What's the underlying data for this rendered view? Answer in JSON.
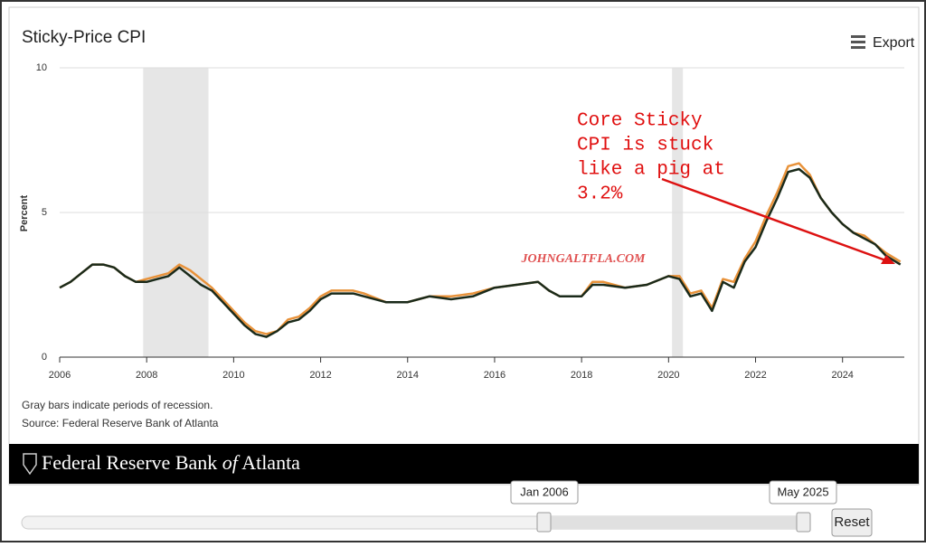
{
  "chart_data": {
    "type": "line",
    "title": "Sticky-Price CPI",
    "export": "Export",
    "ylabel": "Percent",
    "x": [
      2006.0,
      2006.25,
      2006.5,
      2006.75,
      2007.0,
      2007.25,
      2007.5,
      2007.75,
      2008.0,
      2008.25,
      2008.5,
      2008.75,
      2009.0,
      2009.25,
      2009.5,
      2009.75,
      2010.0,
      2010.25,
      2010.5,
      2010.75,
      2011.0,
      2011.25,
      2011.5,
      2011.75,
      2012.0,
      2012.25,
      2012.5,
      2012.75,
      2013.0,
      2013.5,
      2014.0,
      2014.25,
      2014.5,
      2015.0,
      2015.5,
      2016.0,
      2016.5,
      2017.0,
      2017.25,
      2017.5,
      2018.0,
      2018.25,
      2018.5,
      2019.0,
      2019.5,
      2020.0,
      2020.25,
      2020.5,
      2020.75,
      2021.0,
      2021.25,
      2021.5,
      2021.75,
      2022.0,
      2022.25,
      2022.5,
      2022.75,
      2023.0,
      2023.25,
      2023.5,
      2023.75,
      2024.0,
      2024.25,
      2024.5,
      2024.75,
      2025.0,
      2025.33
    ],
    "series": [
      {
        "color": "#e8923a",
        "values": [
          2.4,
          2.6,
          2.9,
          3.2,
          3.2,
          3.1,
          2.8,
          2.6,
          2.7,
          2.8,
          2.9,
          3.2,
          3.0,
          2.7,
          2.4,
          2.0,
          1.6,
          1.2,
          0.9,
          0.8,
          0.9,
          1.3,
          1.4,
          1.7,
          2.1,
          2.3,
          2.3,
          2.3,
          2.2,
          1.9,
          1.9,
          2.0,
          2.1,
          2.1,
          2.2,
          2.4,
          2.5,
          2.6,
          2.3,
          2.1,
          2.1,
          2.6,
          2.6,
          2.4,
          2.5,
          2.8,
          2.8,
          2.2,
          2.3,
          1.7,
          2.7,
          2.6,
          3.4,
          4.0,
          4.9,
          5.7,
          6.6,
          6.7,
          6.3,
          5.5,
          5.0,
          4.6,
          4.3,
          4.2,
          3.9,
          3.6,
          3.3
        ]
      },
      {
        "color": "#1a2a1a",
        "values": [
          2.4,
          2.6,
          2.9,
          3.2,
          3.2,
          3.1,
          2.8,
          2.6,
          2.6,
          2.7,
          2.8,
          3.1,
          2.8,
          2.5,
          2.3,
          1.9,
          1.5,
          1.1,
          0.8,
          0.7,
          0.9,
          1.2,
          1.3,
          1.6,
          2.0,
          2.2,
          2.2,
          2.2,
          2.1,
          1.9,
          1.9,
          2.0,
          2.1,
          2.0,
          2.1,
          2.4,
          2.5,
          2.6,
          2.3,
          2.1,
          2.1,
          2.5,
          2.5,
          2.4,
          2.5,
          2.8,
          2.7,
          2.1,
          2.2,
          1.6,
          2.6,
          2.4,
          3.3,
          3.8,
          4.7,
          5.5,
          6.4,
          6.5,
          6.2,
          5.5,
          5.0,
          4.6,
          4.3,
          4.1,
          3.9,
          3.5,
          3.2
        ]
      }
    ],
    "xlim": [
      2006,
      2025.42
    ],
    "ylim": [
      0,
      10
    ],
    "xticks": [
      2006,
      2008,
      2010,
      2012,
      2014,
      2016,
      2018,
      2020,
      2022,
      2024
    ],
    "yticks": [
      0,
      5,
      10
    ],
    "grid": true,
    "recessions": [
      [
        2007.92,
        2009.42
      ],
      [
        2020.08,
        2020.33
      ]
    ],
    "annotation": [
      "Core Sticky",
      "CPI is stuck",
      "like a pig at",
      "3.2%"
    ],
    "watermark": "JOHNGALTFLA.COM",
    "notes": [
      "Gray bars indicate periods of recession.",
      "Source: Federal Reserve Bank of Atlanta"
    ],
    "footer": [
      "Federal Reserve Bank",
      "of",
      "Atlanta"
    ],
    "navigator": {
      "start": "Jan 2006",
      "end": "May 2025",
      "reset": "Reset"
    }
  }
}
